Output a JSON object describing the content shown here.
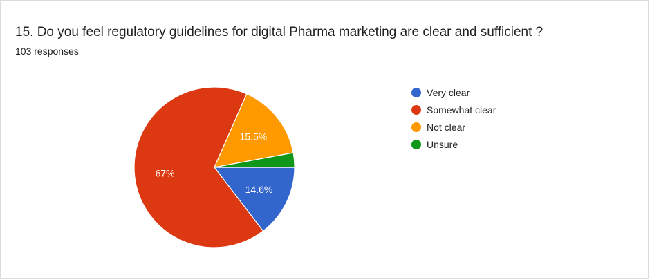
{
  "header": {
    "title": "15. Do you feel regulatory guidelines for digital Pharma marketing are clear and sufficient ?",
    "responses": "103 responses"
  },
  "chart_data": {
    "type": "pie",
    "title": "15. Do you feel regulatory guidelines for digital Pharma marketing are clear and sufficient ?",
    "total_responses": 103,
    "slices": [
      {
        "label": "Very clear",
        "value": 14.6,
        "display": "14.6%",
        "color": "#3366cc"
      },
      {
        "label": "Somewhat clear",
        "value": 67.0,
        "display": "67%",
        "color": "#dc3912"
      },
      {
        "label": "Not clear",
        "value": 15.5,
        "display": "15.5%",
        "color": "#ff9900"
      },
      {
        "label": "Unsure",
        "value": 2.9,
        "display": "",
        "color": "#109618"
      }
    ],
    "legend_position": "right"
  }
}
